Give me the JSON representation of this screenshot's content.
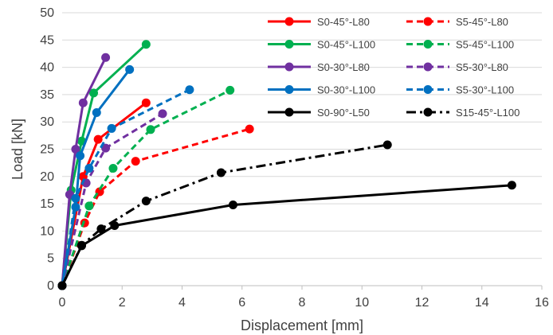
{
  "chart_data": {
    "type": "line",
    "title": "",
    "xlabel": "Displacement [mm]",
    "ylabel": "Load [kN]",
    "xlim": [
      0,
      16
    ],
    "ylim": [
      0,
      50
    ],
    "xticks": [
      0,
      2,
      4,
      6,
      8,
      10,
      12,
      14,
      16
    ],
    "yticks": [
      0,
      5,
      10,
      15,
      20,
      25,
      30,
      35,
      40,
      45,
      50
    ],
    "grid": "horizontal",
    "legend": "top-right",
    "series": [
      {
        "name": "S0-45°-L80",
        "color": "#ff0000",
        "dash": "solid",
        "x": [
          0,
          0.7,
          1.2,
          2.8
        ],
        "y": [
          0,
          20.0,
          26.8,
          33.5
        ]
      },
      {
        "name": "S5-45°-L80",
        "color": "#ff0000",
        "dash": "dashed",
        "x": [
          0,
          0.75,
          1.25,
          2.45,
          6.25
        ],
        "y": [
          0,
          11.5,
          17.2,
          22.8,
          28.7
        ]
      },
      {
        "name": "S0-45°-L100",
        "color": "#00b050",
        "dash": "solid",
        "x": [
          0,
          0.3,
          0.65,
          1.05,
          2.8
        ],
        "y": [
          0,
          17.5,
          26.5,
          35.3,
          44.2
        ]
      },
      {
        "name": "S5-45°-L100",
        "color": "#00b050",
        "dash": "dashed",
        "x": [
          0,
          0.9,
          1.7,
          2.95,
          5.6
        ],
        "y": [
          0,
          14.6,
          21.5,
          28.6,
          35.8
        ]
      },
      {
        "name": "S0-30°-L80",
        "color": "#7030a0",
        "dash": "solid",
        "x": [
          0,
          0.25,
          0.45,
          0.7,
          1.45
        ],
        "y": [
          0,
          16.7,
          25.0,
          33.5,
          41.8
        ]
      },
      {
        "name": "S5-30°-L80",
        "color": "#7030a0",
        "dash": "dashed",
        "x": [
          0,
          0.8,
          1.45,
          3.35
        ],
        "y": [
          0,
          18.8,
          25.2,
          31.5
        ]
      },
      {
        "name": "S0-30°-L100",
        "color": "#0070c0",
        "dash": "solid",
        "x": [
          0,
          0.45,
          0.6,
          1.15,
          2.25
        ],
        "y": [
          0,
          14.4,
          23.8,
          31.7,
          39.6
        ]
      },
      {
        "name": "S5-30°-L100",
        "color": "#0070c0",
        "dash": "dashed",
        "x": [
          0,
          0.45,
          0.9,
          1.65,
          4.25
        ],
        "y": [
          0,
          16.0,
          21.5,
          28.8,
          35.9
        ]
      },
      {
        "name": "S0-90°-L50",
        "color": "#000000",
        "dash": "solid",
        "x": [
          0,
          0.65,
          1.75,
          5.7,
          15.0
        ],
        "y": [
          0,
          7.3,
          11.0,
          14.8,
          18.4
        ]
      },
      {
        "name": "S15-45°-L100",
        "color": "#000000",
        "dash": "dashdot",
        "x": [
          0,
          0.65,
          1.3,
          2.8,
          5.3,
          10.85
        ],
        "y": [
          0,
          7.4,
          10.4,
          15.5,
          20.7,
          25.8
        ]
      }
    ]
  }
}
